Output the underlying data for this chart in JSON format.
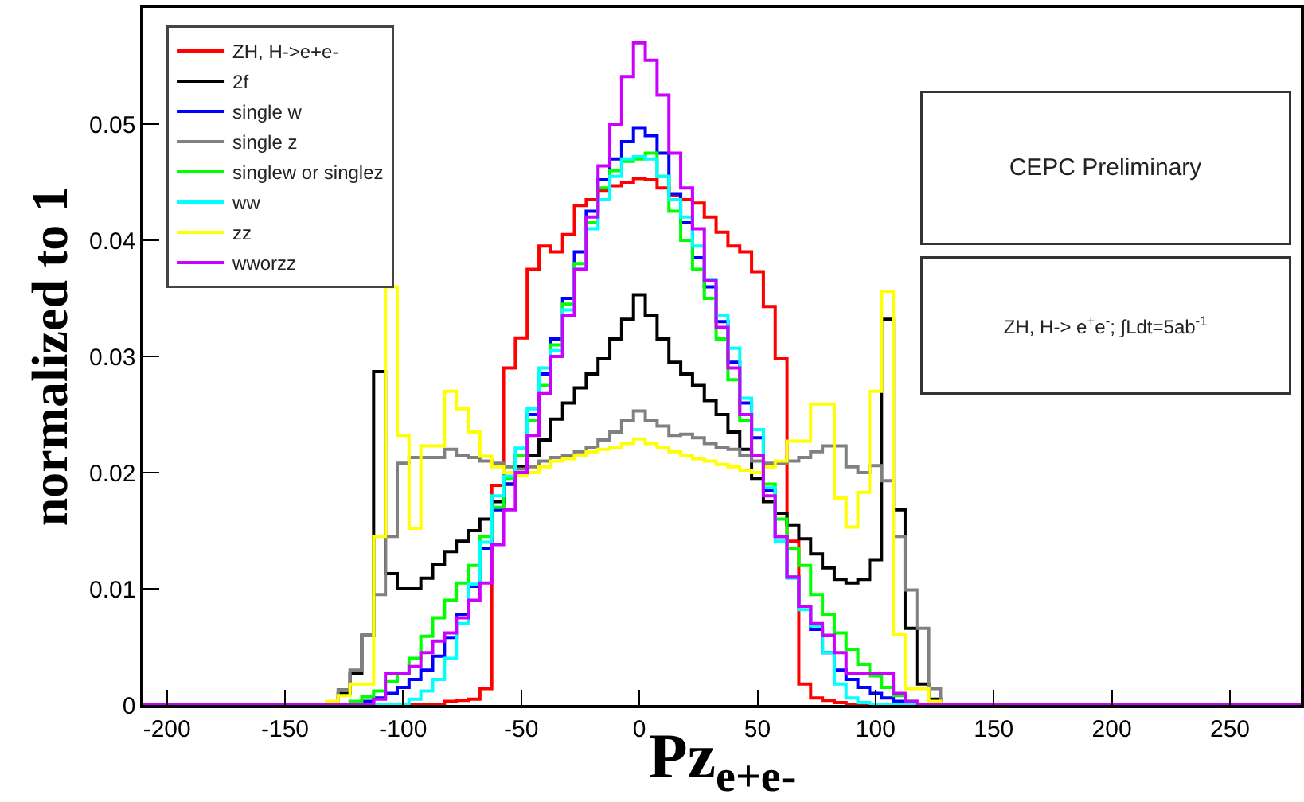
{
  "chart_data": {
    "type": "histogram",
    "xlabel": "Pz$_{e+e-}$",
    "ylabel": "normalized to 1",
    "annotations": [
      "CEPC Preliminary",
      "ZH, H-> e$^{+}$e$^{-}$; ∫Ldt=5ab$^{-1}$"
    ],
    "bins": [
      -210,
      -132.5,
      -127.5,
      -122.5,
      -117.5,
      -112.5,
      -107.5,
      -102.5,
      -97.5,
      -92.5,
      -87.5,
      -82.5,
      -77.5,
      -72.5,
      -67.5,
      -62.5,
      -57.5,
      -52.5,
      -47.5,
      -42.5,
      -37.5,
      -32.5,
      -27.5,
      -22.5,
      -17.5,
      -12.5,
      -7.5,
      -2.5,
      2.5,
      7.5,
      12.5,
      17.5,
      22.5,
      27.5,
      32.5,
      37.5,
      42.5,
      47.5,
      52.5,
      57.5,
      62.5,
      67.5,
      72.5,
      77.5,
      82.5,
      87.5,
      92.5,
      97.5,
      102.5,
      107.5,
      112.5,
      117.5,
      122.5,
      127.5,
      132.5,
      280
    ],
    "series": [
      {
        "name": "ZH, H->e+e-",
        "color": "#ff0000",
        "values": [
          0,
          0,
          0,
          0,
          0,
          0,
          0,
          0,
          0,
          0,
          0,
          0.0003,
          0.0004,
          0.0005,
          0.0014,
          0.0189,
          0.029,
          0.0316,
          0.0375,
          0.0395,
          0.039,
          0.0405,
          0.043,
          0.0435,
          0.0443,
          0.0447,
          0.045,
          0.0453,
          0.0452,
          0.0445,
          0.0439,
          0.0435,
          0.0432,
          0.042,
          0.0407,
          0.0395,
          0.039,
          0.0373,
          0.0343,
          0.0298,
          0.0141,
          0.0018,
          0.0006,
          0.0004,
          0.0002,
          0,
          0,
          0,
          0,
          0,
          0,
          0,
          0,
          0,
          0
        ]
      },
      {
        "name": "2f",
        "color": "#000000",
        "values": [
          0,
          0,
          0.001,
          0.0027,
          0.006,
          0.0287,
          0.0113,
          0.01,
          0.01,
          0.0109,
          0.0121,
          0.0132,
          0.0141,
          0.015,
          0.016,
          0.0175,
          0.019,
          0.0205,
          0.0215,
          0.0228,
          0.0246,
          0.026,
          0.0273,
          0.0285,
          0.0298,
          0.0315,
          0.0332,
          0.0353,
          0.0335,
          0.0315,
          0.0295,
          0.0285,
          0.0275,
          0.0262,
          0.025,
          0.0235,
          0.022,
          0.0195,
          0.0175,
          0.0165,
          0.0155,
          0.0143,
          0.013,
          0.0118,
          0.0108,
          0.0105,
          0.0108,
          0.0125,
          0.0332,
          0.0168,
          0.0066,
          0.0018,
          0.0005,
          0,
          0
        ]
      },
      {
        "name": "single w",
        "color": "#0000ff",
        "values": [
          0,
          0,
          0,
          0,
          0.0003,
          0.0006,
          0.001,
          0.0015,
          0.0022,
          0.003,
          0.0042,
          0.0058,
          0.0078,
          0.0102,
          0.0135,
          0.0168,
          0.019,
          0.0215,
          0.025,
          0.0285,
          0.0315,
          0.035,
          0.039,
          0.0425,
          0.0452,
          0.047,
          0.0485,
          0.0497,
          0.049,
          0.0475,
          0.044,
          0.0415,
          0.0385,
          0.036,
          0.033,
          0.0295,
          0.026,
          0.023,
          0.0185,
          0.0145,
          0.011,
          0.0085,
          0.0065,
          0.0045,
          0.003,
          0.0022,
          0.0015,
          0.001,
          0.0006,
          0.0003,
          0,
          0,
          0,
          0,
          0
        ]
      },
      {
        "name": "single z",
        "color": "#808080",
        "values": [
          0,
          0,
          0.0013,
          0.003,
          0.006,
          0.0095,
          0.0145,
          0.0208,
          0.0213,
          0.0213,
          0.0213,
          0.022,
          0.0215,
          0.0213,
          0.021,
          0.0208,
          0.0205,
          0.0203,
          0.0205,
          0.021,
          0.0213,
          0.0215,
          0.0218,
          0.0222,
          0.0228,
          0.0235,
          0.0245,
          0.0253,
          0.0245,
          0.024,
          0.0232,
          0.0233,
          0.023,
          0.0225,
          0.0222,
          0.022,
          0.0215,
          0.021,
          0.0208,
          0.0208,
          0.021,
          0.0213,
          0.0218,
          0.0223,
          0.0223,
          0.0205,
          0.02,
          0.0206,
          0.0193,
          0.0145,
          0.0099,
          0.0066,
          0.0014,
          0,
          0
        ]
      },
      {
        "name": "singlew or singlez",
        "color": "#00ff00",
        "values": [
          0,
          0,
          0,
          0.0003,
          0.0007,
          0.0012,
          0.002,
          0.0027,
          0.004,
          0.0059,
          0.0075,
          0.009,
          0.0105,
          0.012,
          0.0145,
          0.017,
          0.0195,
          0.0215,
          0.0245,
          0.0275,
          0.031,
          0.0345,
          0.038,
          0.0415,
          0.0445,
          0.046,
          0.0468,
          0.047,
          0.0475,
          0.0455,
          0.0425,
          0.04,
          0.0375,
          0.035,
          0.0315,
          0.028,
          0.0245,
          0.0215,
          0.019,
          0.016,
          0.0135,
          0.012,
          0.0095,
          0.0078,
          0.0062,
          0.0048,
          0.0035,
          0.0025,
          0.0015,
          0.0008,
          0.0003,
          0,
          0,
          0,
          0
        ]
      },
      {
        "name": "ww",
        "color": "#00ffff",
        "values": [
          0,
          0,
          0,
          0,
          0,
          0,
          0,
          0,
          0.0005,
          0.0012,
          0.0022,
          0.004,
          0.007,
          0.0104,
          0.014,
          0.018,
          0.0197,
          0.0221,
          0.0255,
          0.029,
          0.0305,
          0.034,
          0.0375,
          0.041,
          0.0435,
          0.0455,
          0.047,
          0.0472,
          0.047,
          0.0455,
          0.0435,
          0.042,
          0.0395,
          0.0366,
          0.0335,
          0.0307,
          0.0264,
          0.0237,
          0.0187,
          0.0141,
          0.0109,
          0.0082,
          0.0068,
          0.0045,
          0.0018,
          0.0006,
          0.0002,
          0,
          0,
          0,
          0,
          0,
          0,
          0,
          0
        ]
      },
      {
        "name": "zz",
        "color": "#ffff00",
        "values": [
          0,
          0.0003,
          0.0008,
          0.0018,
          0.0018,
          0.0145,
          0.036,
          0.0232,
          0.0152,
          0.0223,
          0.0223,
          0.027,
          0.0255,
          0.0235,
          0.0214,
          0.0205,
          0.02,
          0.0198,
          0.02,
          0.0205,
          0.021,
          0.0212,
          0.0215,
          0.0218,
          0.022,
          0.0222,
          0.0225,
          0.0229,
          0.0225,
          0.0222,
          0.0218,
          0.0215,
          0.0212,
          0.021,
          0.0207,
          0.0205,
          0.0202,
          0.02,
          0.0205,
          0.021,
          0.0227,
          0.0227,
          0.0259,
          0.0259,
          0.0178,
          0.0153,
          0.0183,
          0.027,
          0.0356,
          0.0061,
          0.0014,
          0.0014,
          0.0003,
          0,
          0
        ]
      },
      {
        "name": "wworzz",
        "color": "#cc00ff",
        "values": [
          0,
          0,
          0,
          0,
          0,
          0.0005,
          0.0027,
          0.0027,
          0.0033,
          0.0045,
          0.0055,
          0.0062,
          0.0075,
          0.009,
          0.0105,
          0.0138,
          0.0168,
          0.02,
          0.0232,
          0.0268,
          0.03,
          0.0335,
          0.0375,
          0.042,
          0.0464,
          0.05,
          0.0541,
          0.057,
          0.0555,
          0.0525,
          0.0475,
          0.0445,
          0.041,
          0.0365,
          0.0325,
          0.029,
          0.025,
          0.0215,
          0.018,
          0.0145,
          0.011,
          0.0085,
          0.007,
          0.006,
          0.0045,
          0.0027,
          0.0027,
          0.0027,
          0.0027,
          0.001,
          0.0003,
          0,
          0,
          0,
          0
        ]
      }
    ],
    "xlim": [
      -210,
      280
    ],
    "xticks": [
      -200,
      -150,
      -100,
      -50,
      0,
      50,
      100,
      150,
      200,
      250
    ],
    "ylim": [
      0,
      0.06
    ],
    "yticks": [
      0,
      0.01,
      0.02,
      0.03,
      0.04,
      0.05
    ],
    "grid": false,
    "legend": "top left"
  }
}
